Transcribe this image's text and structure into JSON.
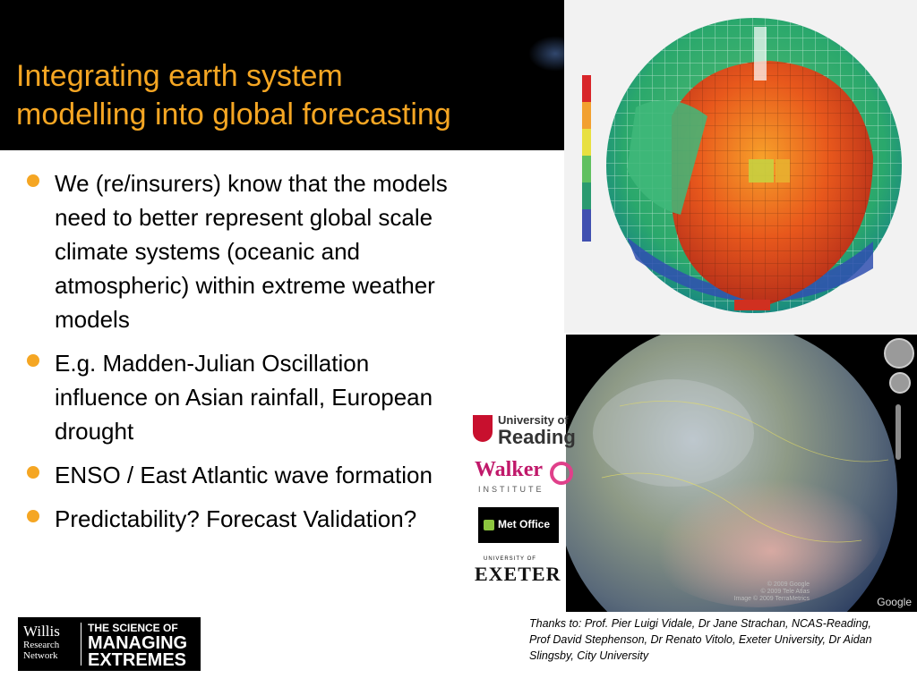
{
  "slide": {
    "title": "Integrating earth system\nmodelling into global forecasting",
    "bullets": [
      "We (re/insurers) know that the models need to better represent global scale climate systems (oceanic and atmospheric) within extreme weather models",
      "E.g. Madden-Julian Oscillation influence on Asian rainfall, European drought",
      "ENSO / East Atlantic wave formation",
      "Predictability? Forecast Validation?"
    ],
    "credit": "Thanks to: Prof. Pier Luigi Vidale, Dr Jane Strachan, NCAS-Reading, Prof David Stephenson, Dr Renato Vitolo, Exeter University, Dr Aidan Slingsby, City University"
  },
  "logos": {
    "willis_line1": "Willis",
    "willis_line2": "Research",
    "willis_line3": "Network",
    "science_line1": "THE SCIENCE OF",
    "science_line2": "MANAGING",
    "science_line3": "EXTREMES",
    "uor_line1": "University of",
    "uor_line2": "Reading",
    "walker_name": "Walker",
    "walker_sub": "INSTITUTE",
    "metoffice": "Met Office",
    "exeter_top": "UNIVERSITY OF",
    "exeter_name": "EXETER"
  },
  "globe_view": {
    "attribution": "Google",
    "small_credits": "© 2009 Google\n© 2009 Tele Atlas\nImage © 2009 TerraMetrics"
  },
  "colors": {
    "title": "#f5a623",
    "bullet": "#f5a623",
    "header_bg": "#000000"
  },
  "icons": {
    "bullet": "orange-circle",
    "compass": "navigation-compass-icon",
    "pan": "pan-control-icon",
    "zoom": "zoom-slider-icon"
  }
}
